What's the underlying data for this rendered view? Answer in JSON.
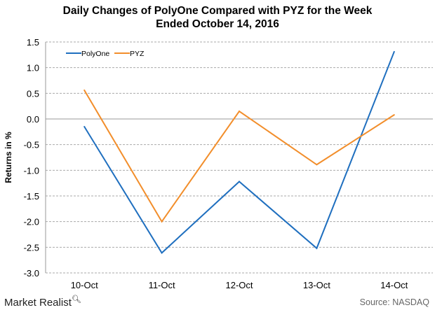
{
  "chart_data": {
    "type": "line",
    "title": "Daily Changes of PolyOne Compared with PYZ for the Week Ended October 14, 2016",
    "title_lines": [
      "Daily Changes of PolyOne Compared with PYZ for the Week",
      "Ended October 14, 2016"
    ],
    "xlabel": "",
    "ylabel": "Returns in %",
    "categories": [
      "10-Oct",
      "11-Oct",
      "12-Oct",
      "13-Oct",
      "14-Oct"
    ],
    "ylim": [
      -3.0,
      1.5
    ],
    "yticks": [
      "1.5",
      "1.0",
      "0.5",
      "0.0",
      "-0.5",
      "-1.0",
      "-1.5",
      "-2.0",
      "-2.5",
      "-3.0"
    ],
    "grid": "horizontal dashed",
    "legend_placement": "top-left",
    "series": [
      {
        "name": "PolyOne",
        "color": "#1f6fbf",
        "values": [
          -0.15,
          -2.61,
          -1.22,
          -2.52,
          1.31
        ]
      },
      {
        "name": "PYZ",
        "color": "#f28e2b",
        "values": [
          0.56,
          -2.0,
          0.15,
          -0.89,
          0.08
        ]
      }
    ]
  },
  "footer": {
    "logo": "Market Realist",
    "logo_icon": "magnifier-icon",
    "source": "Source: NASDAQ"
  }
}
